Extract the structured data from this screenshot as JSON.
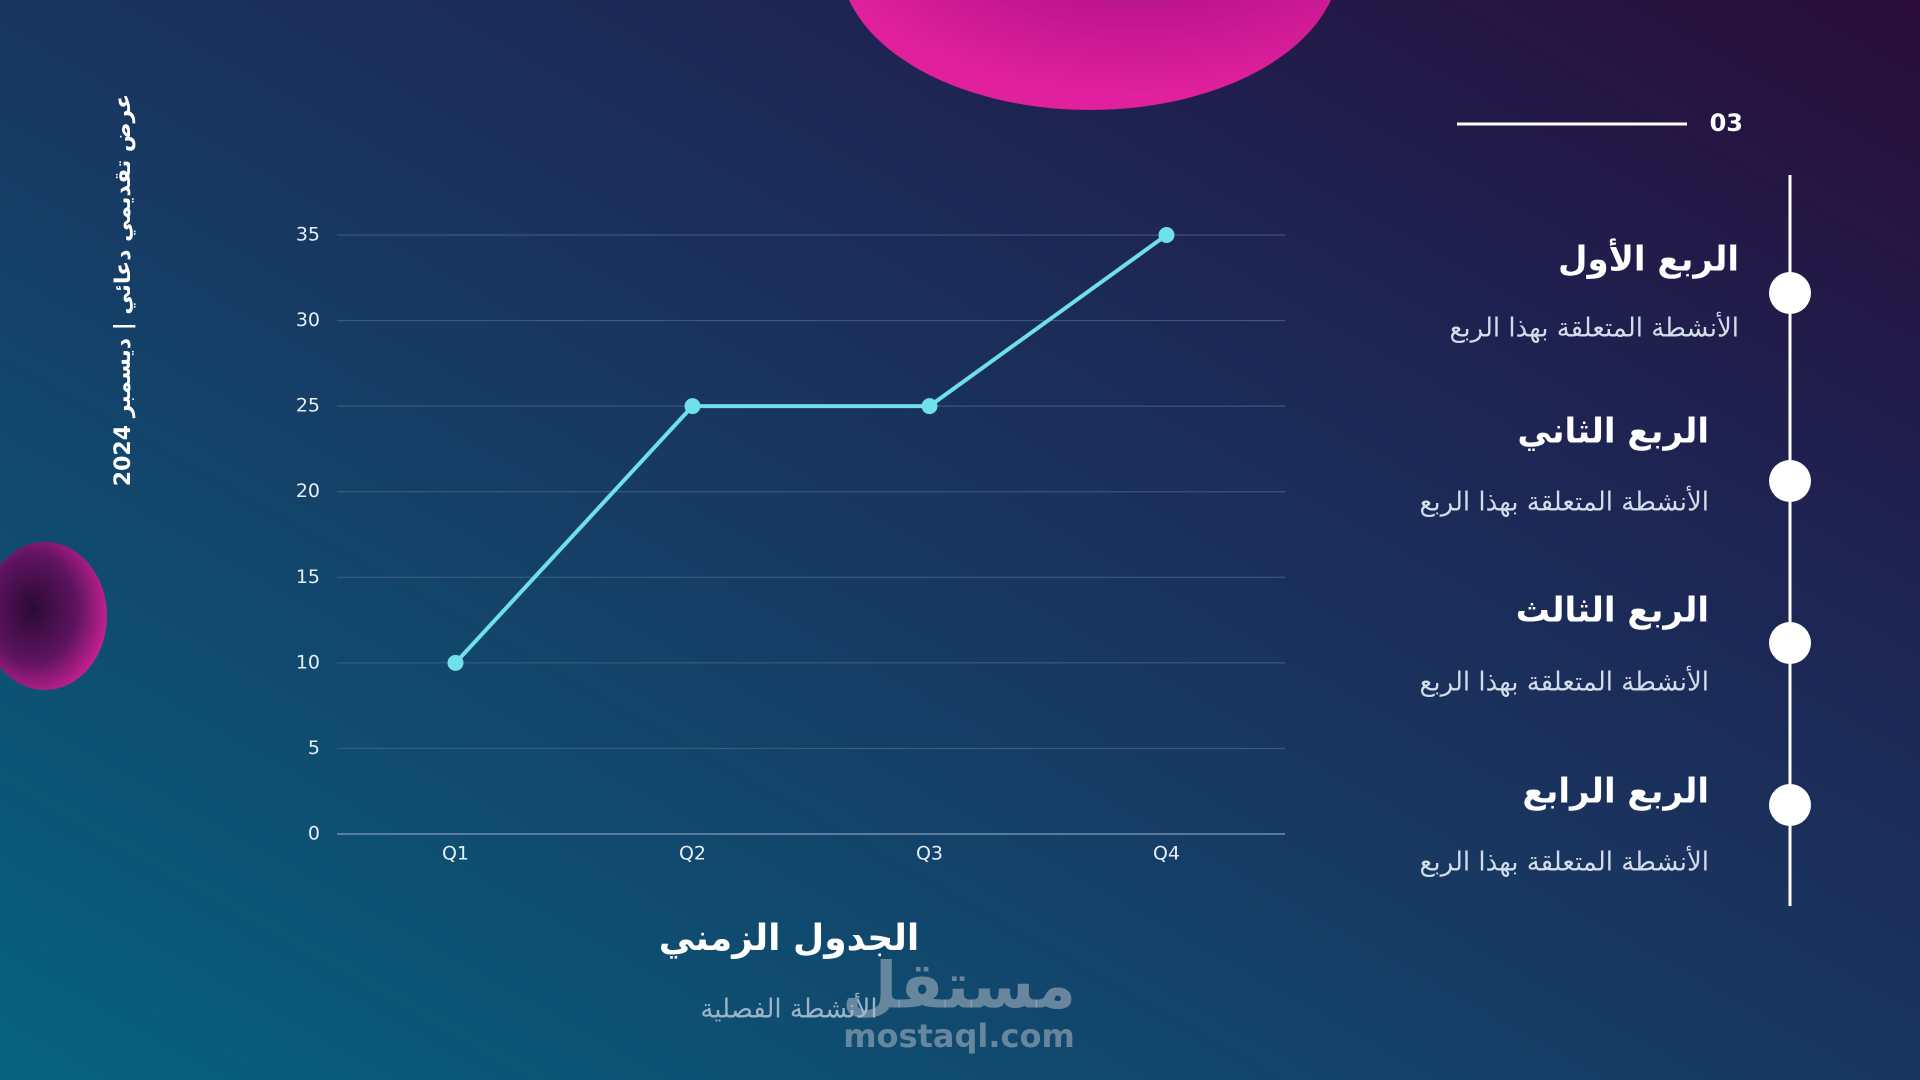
{
  "slide": {
    "side_caption": "عرض تقديمي دعائي | ديسمبر 2024",
    "page_number": "03",
    "timeline": [
      {
        "title": "الربع الأول",
        "description": "الأنشطة المتعلقة بهذا الربع"
      },
      {
        "title": "الربع الثاني",
        "description": "الأنشطة المتعلقة بهذا الربع"
      },
      {
        "title": "الربع الثالث",
        "description": "الأنشطة المتعلقة بهذا الربع"
      },
      {
        "title": "الربع الرابع",
        "description": "الأنشطة المتعلقة بهذا الربع"
      }
    ],
    "footer_title": "الجدول الزمني",
    "footer_subtitle": "الأنشطة الفصلية",
    "watermark": "مستقل",
    "watermark_url": "mostaql.com"
  },
  "chart_data": {
    "type": "line",
    "categories": [
      "Q1",
      "Q2",
      "Q3",
      "Q4"
    ],
    "values": [
      10,
      25,
      25,
      35
    ],
    "color": "#6fe0e8",
    "ylim": [
      0,
      35
    ],
    "yticks": [
      0,
      5,
      10,
      15,
      20,
      25,
      30,
      35
    ],
    "grid": true
  }
}
